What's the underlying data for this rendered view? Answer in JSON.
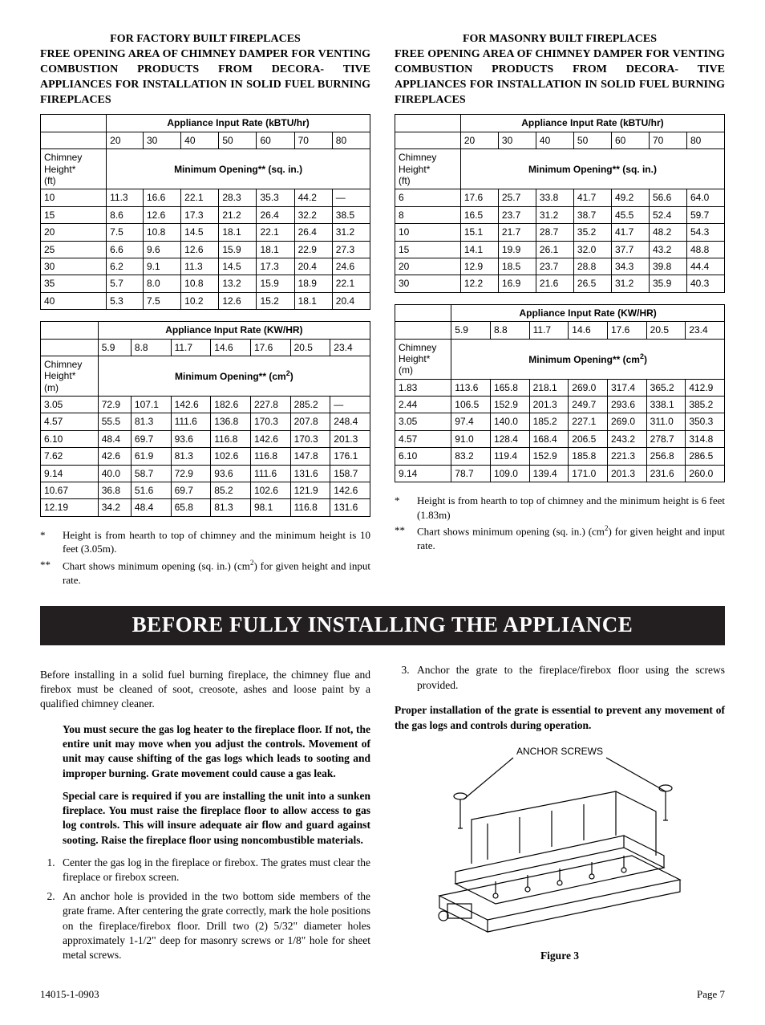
{
  "left": {
    "title_line1": "FOR FACTORY BUILT FIREPLACES",
    "title_rest": "FREE OPENING AREA OF CHIMNEY DAMPER FOR VENTING COMBUSTION PRODUCTS FROM DECORA- TIVE APPLIANCES FOR INSTALLATION IN SOLID FUEL BURNING FIREPLACES",
    "table1": {
      "rate_header": "Appliance Input Rate (kBTU/hr)",
      "rates": [
        "20",
        "30",
        "40",
        "50",
        "60",
        "70",
        "80"
      ],
      "height_label1": "Chimney",
      "height_label2": "Height*",
      "height_label3": "(ft)",
      "opening_header": "Minimum Opening** (sq. in.)",
      "rows": [
        [
          "10",
          "11.3",
          "16.6",
          "22.1",
          "28.3",
          "35.3",
          "44.2",
          "—"
        ],
        [
          "15",
          "8.6",
          "12.6",
          "17.3",
          "21.2",
          "26.4",
          "32.2",
          "38.5"
        ],
        [
          "20",
          "7.5",
          "10.8",
          "14.5",
          "18.1",
          "22.1",
          "26.4",
          "31.2"
        ],
        [
          "25",
          "6.6",
          "9.6",
          "12.6",
          "15.9",
          "18.1",
          "22.9",
          "27.3"
        ],
        [
          "30",
          "6.2",
          "9.1",
          "11.3",
          "14.5",
          "17.3",
          "20.4",
          "24.6"
        ],
        [
          "35",
          "5.7",
          "8.0",
          "10.8",
          "13.2",
          "15.9",
          "18.9",
          "22.1"
        ],
        [
          "40",
          "5.3",
          "7.5",
          "10.2",
          "12.6",
          "15.2",
          "18.1",
          "20.4"
        ]
      ]
    },
    "table2": {
      "rate_header": "Appliance Input Rate (KW/HR)",
      "rates": [
        "5.9",
        "8.8",
        "11.7",
        "14.6",
        "17.6",
        "20.5",
        "23.4"
      ],
      "height_label1": "Chimney",
      "height_label2": "Height*",
      "height_label3": "(m)",
      "opening_header_pre": "Minimum Opening** (cm",
      "opening_header_sup": "2",
      "opening_header_post": ")",
      "rows": [
        [
          "3.05",
          "72.9",
          "107.1",
          "142.6",
          "182.6",
          "227.8",
          "285.2",
          "—"
        ],
        [
          "4.57",
          "55.5",
          "81.3",
          "111.6",
          "136.8",
          "170.3",
          "207.8",
          "248.4"
        ],
        [
          "6.10",
          "48.4",
          "69.7",
          "93.6",
          "116.8",
          "142.6",
          "170.3",
          "201.3"
        ],
        [
          "7.62",
          "42.6",
          "61.9",
          "81.3",
          "102.6",
          "116.8",
          "147.8",
          "176.1"
        ],
        [
          "9.14",
          "40.0",
          "58.7",
          "72.9",
          "93.6",
          "111.6",
          "131.6",
          "158.7"
        ],
        [
          "10.67",
          "36.8",
          "51.6",
          "69.7",
          "85.2",
          "102.6",
          "121.9",
          "142.6"
        ],
        [
          "12.19",
          "34.2",
          "48.4",
          "65.8",
          "81.3",
          "98.1",
          "116.8",
          "131.6"
        ]
      ]
    },
    "fn1_mark": "*",
    "fn1_text": "Height is from hearth to top of chimney and the minimum height is 10 feet (3.05m).",
    "fn2_mark": "**",
    "fn2_text_pre": "Chart shows minimum opening (sq. in.) (cm",
    "fn2_text_sup": "2",
    "fn2_text_post": ") for given height and input rate."
  },
  "right": {
    "title_line1": "FOR MASONRY BUILT FIREPLACES",
    "title_rest": "FREE OPENING AREA OF CHIMNEY DAMPER FOR VENTING COMBUSTION PRODUCTS FROM DECORA- TIVE APPLIANCES FOR INSTALLATION IN SOLID FUEL BURNING FIREPLACES",
    "table1": {
      "rate_header": "Appliance Input Rate (kBTU/hr)",
      "rates": [
        "20",
        "30",
        "40",
        "50",
        "60",
        "70",
        "80"
      ],
      "height_label1": "Chimney",
      "height_label2": "Height*",
      "height_label3": "(ft)",
      "opening_header": "Minimum Opening** (sq. in.)",
      "rows": [
        [
          "6",
          "17.6",
          "25.7",
          "33.8",
          "41.7",
          "49.2",
          "56.6",
          "64.0"
        ],
        [
          "8",
          "16.5",
          "23.7",
          "31.2",
          "38.7",
          "45.5",
          "52.4",
          "59.7"
        ],
        [
          "10",
          "15.1",
          "21.7",
          "28.7",
          "35.2",
          "41.7",
          "48.2",
          "54.3"
        ],
        [
          "15",
          "14.1",
          "19.9",
          "26.1",
          "32.0",
          "37.7",
          "43.2",
          "48.8"
        ],
        [
          "20",
          "12.9",
          "18.5",
          "23.7",
          "28.8",
          "34.3",
          "39.8",
          "44.4"
        ],
        [
          "30",
          "12.2",
          "16.9",
          "21.6",
          "26.5",
          "31.2",
          "35.9",
          "40.3"
        ]
      ]
    },
    "table2": {
      "rate_header": "Appliance Input Rate (KW/HR)",
      "rates": [
        "5.9",
        "8.8",
        "11.7",
        "14.6",
        "17.6",
        "20.5",
        "23.4"
      ],
      "height_label1": "Chimney",
      "height_label2": "Height*",
      "height_label3": "(m)",
      "opening_header_pre": "Minimum Opening** (cm",
      "opening_header_sup": "2",
      "opening_header_post": ")",
      "rows": [
        [
          "1.83",
          "113.6",
          "165.8",
          "218.1",
          "269.0",
          "317.4",
          "365.2",
          "412.9"
        ],
        [
          "2.44",
          "106.5",
          "152.9",
          "201.3",
          "249.7",
          "293.6",
          "338.1",
          "385.2"
        ],
        [
          "3.05",
          "97.4",
          "140.0",
          "185.2",
          "227.1",
          "269.0",
          "311.0",
          "350.3"
        ],
        [
          "4.57",
          "91.0",
          "128.4",
          "168.4",
          "206.5",
          "243.2",
          "278.7",
          "314.8"
        ],
        [
          "6.10",
          "83.2",
          "119.4",
          "152.9",
          "185.8",
          "221.3",
          "256.8",
          "286.5"
        ],
        [
          "9.14",
          "78.7",
          "109.0",
          "139.4",
          "171.0",
          "201.3",
          "231.6",
          "260.0"
        ]
      ]
    },
    "fn1_mark": "*",
    "fn1_text": "Height is from hearth to top of chimney and the minimum height is 6 feet (1.83m)",
    "fn2_mark": "**",
    "fn2_text_pre": "Chart shows minimum opening (sq. in.) (cm",
    "fn2_text_sup": "2",
    "fn2_text_post": ") for given height and input rate."
  },
  "banner": "BEFORE FULLY INSTALLING THE APPLIANCE",
  "bottom": {
    "intro": "Before installing in a solid fuel burning fireplace, the chimney flue and firebox must be cleaned of soot, creosote, ashes and loose paint by a qualified chimney cleaner.",
    "bold1": "You must secure the gas log heater to the fireplace floor. If not, the entire unit may move when you adjust the controls. Movement of unit may cause shifting of the gas logs which leads to sooting and improper burning. Grate movement could cause a gas leak.",
    "bold2": "Special care is required if you are installing the unit into a sunken fireplace. You must raise the fireplace floor to allow access to gas log controls. This will insure adequate air flow and guard against sooting. Raise the fireplace floor using noncombustible materials.",
    "step1": "Center the gas log in the fireplace or firebox. The grates must clear the fireplace or firebox screen.",
    "step2": "An anchor hole is provided in the two bottom side members of the grate frame. After centering the grate correctly, mark the hole positions on the fireplace/firebox floor. Drill two (2) 5/32\" diameter holes approximately 1-1/2\" deep for masonry screws or 1/8\" hole for sheet metal screws.",
    "step3": "Anchor the grate to the fireplace/firebox floor using the screws provided.",
    "bold3": "Proper installation of the grate is essential to prevent any movement of the gas logs and controls during operation.",
    "anchor_label": "ANCHOR SCREWS",
    "fig_caption": "Figure 3"
  },
  "footer": {
    "left": "14015-1-0903",
    "right": "Page 7"
  }
}
